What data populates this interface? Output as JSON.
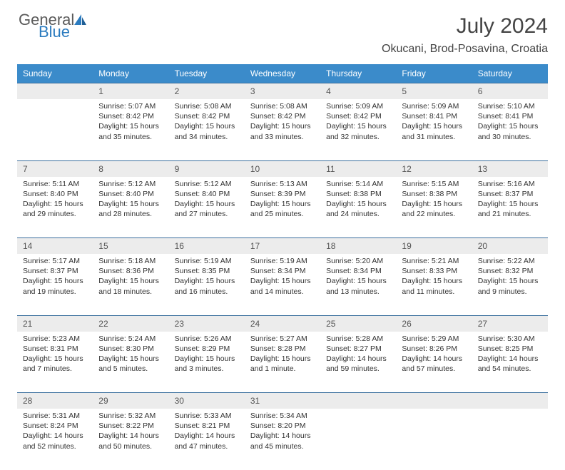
{
  "logo": {
    "part1": "General",
    "part2": "Blue"
  },
  "title": "July 2024",
  "location": "Okucani, Brod-Posavina, Croatia",
  "colors": {
    "header_bg": "#3b8bca",
    "header_text": "#ffffff",
    "daynum_bg": "#ececec",
    "border": "#3b6f9e",
    "logo_gray": "#5a5a5a",
    "logo_blue": "#2b7bbf"
  },
  "day_headers": [
    "Sunday",
    "Monday",
    "Tuesday",
    "Wednesday",
    "Thursday",
    "Friday",
    "Saturday"
  ],
  "weeks": [
    {
      "nums": [
        "",
        "1",
        "2",
        "3",
        "4",
        "5",
        "6"
      ],
      "cells": [
        {
          "sunrise": "",
          "sunset": "",
          "daylight1": "",
          "daylight2": ""
        },
        {
          "sunrise": "Sunrise: 5:07 AM",
          "sunset": "Sunset: 8:42 PM",
          "daylight1": "Daylight: 15 hours",
          "daylight2": "and 35 minutes."
        },
        {
          "sunrise": "Sunrise: 5:08 AM",
          "sunset": "Sunset: 8:42 PM",
          "daylight1": "Daylight: 15 hours",
          "daylight2": "and 34 minutes."
        },
        {
          "sunrise": "Sunrise: 5:08 AM",
          "sunset": "Sunset: 8:42 PM",
          "daylight1": "Daylight: 15 hours",
          "daylight2": "and 33 minutes."
        },
        {
          "sunrise": "Sunrise: 5:09 AM",
          "sunset": "Sunset: 8:42 PM",
          "daylight1": "Daylight: 15 hours",
          "daylight2": "and 32 minutes."
        },
        {
          "sunrise": "Sunrise: 5:09 AM",
          "sunset": "Sunset: 8:41 PM",
          "daylight1": "Daylight: 15 hours",
          "daylight2": "and 31 minutes."
        },
        {
          "sunrise": "Sunrise: 5:10 AM",
          "sunset": "Sunset: 8:41 PM",
          "daylight1": "Daylight: 15 hours",
          "daylight2": "and 30 minutes."
        }
      ]
    },
    {
      "nums": [
        "7",
        "8",
        "9",
        "10",
        "11",
        "12",
        "13"
      ],
      "cells": [
        {
          "sunrise": "Sunrise: 5:11 AM",
          "sunset": "Sunset: 8:40 PM",
          "daylight1": "Daylight: 15 hours",
          "daylight2": "and 29 minutes."
        },
        {
          "sunrise": "Sunrise: 5:12 AM",
          "sunset": "Sunset: 8:40 PM",
          "daylight1": "Daylight: 15 hours",
          "daylight2": "and 28 minutes."
        },
        {
          "sunrise": "Sunrise: 5:12 AM",
          "sunset": "Sunset: 8:40 PM",
          "daylight1": "Daylight: 15 hours",
          "daylight2": "and 27 minutes."
        },
        {
          "sunrise": "Sunrise: 5:13 AM",
          "sunset": "Sunset: 8:39 PM",
          "daylight1": "Daylight: 15 hours",
          "daylight2": "and 25 minutes."
        },
        {
          "sunrise": "Sunrise: 5:14 AM",
          "sunset": "Sunset: 8:38 PM",
          "daylight1": "Daylight: 15 hours",
          "daylight2": "and 24 minutes."
        },
        {
          "sunrise": "Sunrise: 5:15 AM",
          "sunset": "Sunset: 8:38 PM",
          "daylight1": "Daylight: 15 hours",
          "daylight2": "and 22 minutes."
        },
        {
          "sunrise": "Sunrise: 5:16 AM",
          "sunset": "Sunset: 8:37 PM",
          "daylight1": "Daylight: 15 hours",
          "daylight2": "and 21 minutes."
        }
      ]
    },
    {
      "nums": [
        "14",
        "15",
        "16",
        "17",
        "18",
        "19",
        "20"
      ],
      "cells": [
        {
          "sunrise": "Sunrise: 5:17 AM",
          "sunset": "Sunset: 8:37 PM",
          "daylight1": "Daylight: 15 hours",
          "daylight2": "and 19 minutes."
        },
        {
          "sunrise": "Sunrise: 5:18 AM",
          "sunset": "Sunset: 8:36 PM",
          "daylight1": "Daylight: 15 hours",
          "daylight2": "and 18 minutes."
        },
        {
          "sunrise": "Sunrise: 5:19 AM",
          "sunset": "Sunset: 8:35 PM",
          "daylight1": "Daylight: 15 hours",
          "daylight2": "and 16 minutes."
        },
        {
          "sunrise": "Sunrise: 5:19 AM",
          "sunset": "Sunset: 8:34 PM",
          "daylight1": "Daylight: 15 hours",
          "daylight2": "and 14 minutes."
        },
        {
          "sunrise": "Sunrise: 5:20 AM",
          "sunset": "Sunset: 8:34 PM",
          "daylight1": "Daylight: 15 hours",
          "daylight2": "and 13 minutes."
        },
        {
          "sunrise": "Sunrise: 5:21 AM",
          "sunset": "Sunset: 8:33 PM",
          "daylight1": "Daylight: 15 hours",
          "daylight2": "and 11 minutes."
        },
        {
          "sunrise": "Sunrise: 5:22 AM",
          "sunset": "Sunset: 8:32 PM",
          "daylight1": "Daylight: 15 hours",
          "daylight2": "and 9 minutes."
        }
      ]
    },
    {
      "nums": [
        "21",
        "22",
        "23",
        "24",
        "25",
        "26",
        "27"
      ],
      "cells": [
        {
          "sunrise": "Sunrise: 5:23 AM",
          "sunset": "Sunset: 8:31 PM",
          "daylight1": "Daylight: 15 hours",
          "daylight2": "and 7 minutes."
        },
        {
          "sunrise": "Sunrise: 5:24 AM",
          "sunset": "Sunset: 8:30 PM",
          "daylight1": "Daylight: 15 hours",
          "daylight2": "and 5 minutes."
        },
        {
          "sunrise": "Sunrise: 5:26 AM",
          "sunset": "Sunset: 8:29 PM",
          "daylight1": "Daylight: 15 hours",
          "daylight2": "and 3 minutes."
        },
        {
          "sunrise": "Sunrise: 5:27 AM",
          "sunset": "Sunset: 8:28 PM",
          "daylight1": "Daylight: 15 hours",
          "daylight2": "and 1 minute."
        },
        {
          "sunrise": "Sunrise: 5:28 AM",
          "sunset": "Sunset: 8:27 PM",
          "daylight1": "Daylight: 14 hours",
          "daylight2": "and 59 minutes."
        },
        {
          "sunrise": "Sunrise: 5:29 AM",
          "sunset": "Sunset: 8:26 PM",
          "daylight1": "Daylight: 14 hours",
          "daylight2": "and 57 minutes."
        },
        {
          "sunrise": "Sunrise: 5:30 AM",
          "sunset": "Sunset: 8:25 PM",
          "daylight1": "Daylight: 14 hours",
          "daylight2": "and 54 minutes."
        }
      ]
    },
    {
      "nums": [
        "28",
        "29",
        "30",
        "31",
        "",
        "",
        ""
      ],
      "cells": [
        {
          "sunrise": "Sunrise: 5:31 AM",
          "sunset": "Sunset: 8:24 PM",
          "daylight1": "Daylight: 14 hours",
          "daylight2": "and 52 minutes."
        },
        {
          "sunrise": "Sunrise: 5:32 AM",
          "sunset": "Sunset: 8:22 PM",
          "daylight1": "Daylight: 14 hours",
          "daylight2": "and 50 minutes."
        },
        {
          "sunrise": "Sunrise: 5:33 AM",
          "sunset": "Sunset: 8:21 PM",
          "daylight1": "Daylight: 14 hours",
          "daylight2": "and 47 minutes."
        },
        {
          "sunrise": "Sunrise: 5:34 AM",
          "sunset": "Sunset: 8:20 PM",
          "daylight1": "Daylight: 14 hours",
          "daylight2": "and 45 minutes."
        },
        {
          "sunrise": "",
          "sunset": "",
          "daylight1": "",
          "daylight2": ""
        },
        {
          "sunrise": "",
          "sunset": "",
          "daylight1": "",
          "daylight2": ""
        },
        {
          "sunrise": "",
          "sunset": "",
          "daylight1": "",
          "daylight2": ""
        }
      ]
    }
  ]
}
